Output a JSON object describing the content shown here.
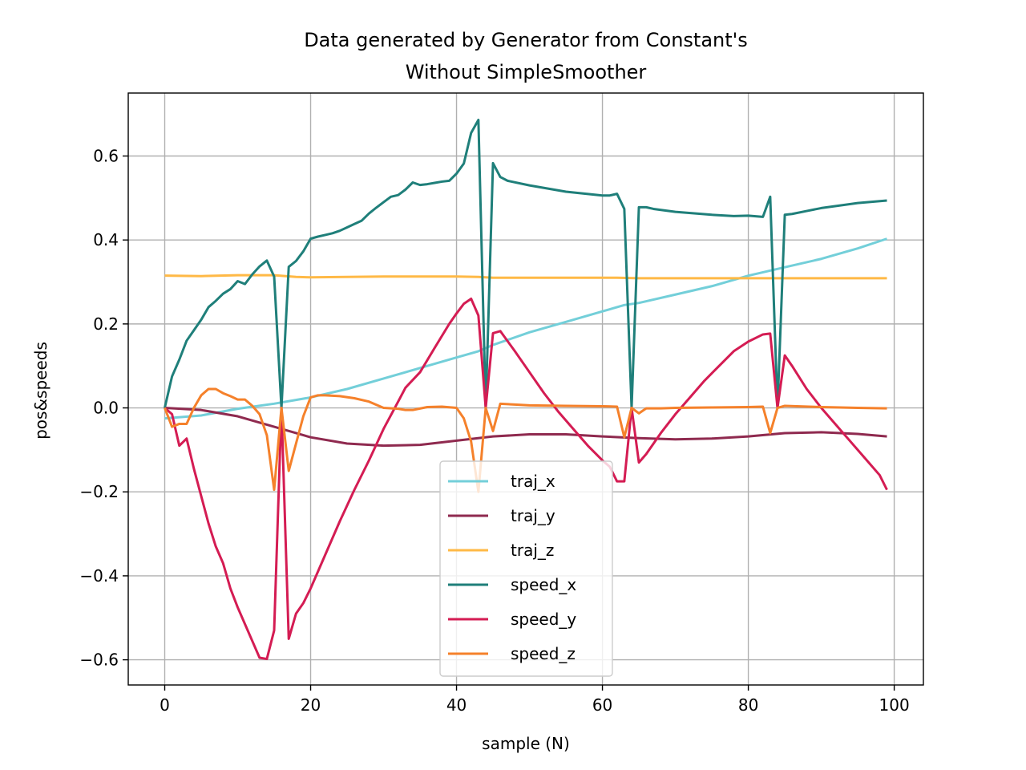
{
  "chart_data": {
    "type": "line",
    "title": [
      "Data generated by Generator from Constant's",
      "Without SimpleSmoother"
    ],
    "xlabel": "sample (N)",
    "ylabel": "pos&speeds",
    "xlim": [
      -5,
      104
    ],
    "ylim": [
      -0.66,
      0.75
    ],
    "xticks": [
      0,
      20,
      40,
      60,
      80,
      100
    ],
    "xtick_labels": [
      "0",
      "20",
      "40",
      "60",
      "80",
      "100"
    ],
    "yticks": [
      -0.6,
      -0.4,
      -0.2,
      0.0,
      0.2,
      0.4,
      0.6
    ],
    "ytick_labels": [
      "−0.6",
      "−0.4",
      "−0.2",
      "0.0",
      "0.2",
      "0.4",
      "0.6"
    ],
    "grid": true,
    "legend_position": "lower-center",
    "series": [
      {
        "name": "traj_x",
        "color": "#73cfd9",
        "points": [
          [
            0,
            -0.025
          ],
          [
            5,
            -0.018
          ],
          [
            10,
            -0.002
          ],
          [
            15,
            0.01
          ],
          [
            20,
            0.025
          ],
          [
            25,
            0.045
          ],
          [
            30,
            0.07
          ],
          [
            35,
            0.095
          ],
          [
            40,
            0.12
          ],
          [
            43,
            0.135
          ],
          [
            45,
            0.15
          ],
          [
            50,
            0.18
          ],
          [
            55,
            0.205
          ],
          [
            60,
            0.23
          ],
          [
            63,
            0.245
          ],
          [
            65,
            0.25
          ],
          [
            70,
            0.27
          ],
          [
            75,
            0.29
          ],
          [
            80,
            0.315
          ],
          [
            85,
            0.335
          ],
          [
            90,
            0.355
          ],
          [
            95,
            0.38
          ],
          [
            99,
            0.403
          ]
        ]
      },
      {
        "name": "traj_y",
        "color": "#8f2a4f",
        "points": [
          [
            0,
            0.0
          ],
          [
            5,
            -0.005
          ],
          [
            10,
            -0.02
          ],
          [
            15,
            -0.045
          ],
          [
            20,
            -0.07
          ],
          [
            25,
            -0.085
          ],
          [
            30,
            -0.09
          ],
          [
            35,
            -0.088
          ],
          [
            40,
            -0.078
          ],
          [
            45,
            -0.068
          ],
          [
            50,
            -0.063
          ],
          [
            55,
            -0.063
          ],
          [
            60,
            -0.068
          ],
          [
            65,
            -0.072
          ],
          [
            70,
            -0.075
          ],
          [
            75,
            -0.073
          ],
          [
            80,
            -0.068
          ],
          [
            85,
            -0.06
          ],
          [
            90,
            -0.058
          ],
          [
            95,
            -0.062
          ],
          [
            99,
            -0.068
          ]
        ]
      },
      {
        "name": "traj_z",
        "color": "#ffb946",
        "points": [
          [
            0,
            0.315
          ],
          [
            5,
            0.314
          ],
          [
            10,
            0.316
          ],
          [
            15,
            0.316
          ],
          [
            18,
            0.312
          ],
          [
            20,
            0.311
          ],
          [
            30,
            0.313
          ],
          [
            40,
            0.313
          ],
          [
            43,
            0.312
          ],
          [
            45,
            0.31
          ],
          [
            55,
            0.31
          ],
          [
            62,
            0.31
          ],
          [
            65,
            0.309
          ],
          [
            75,
            0.309
          ],
          [
            85,
            0.309
          ],
          [
            99,
            0.309
          ]
        ]
      },
      {
        "name": "speed_x",
        "color": "#1f7f7a",
        "points": [
          [
            0,
            0.0
          ],
          [
            1,
            0.075
          ],
          [
            2,
            0.115
          ],
          [
            3,
            0.16
          ],
          [
            4,
            0.185
          ],
          [
            5,
            0.21
          ],
          [
            6,
            0.24
          ],
          [
            7,
            0.255
          ],
          [
            8,
            0.272
          ],
          [
            9,
            0.283
          ],
          [
            10,
            0.302
          ],
          [
            11,
            0.295
          ],
          [
            12,
            0.318
          ],
          [
            13,
            0.337
          ],
          [
            14,
            0.351
          ],
          [
            15,
            0.313
          ],
          [
            16,
            0.0
          ],
          [
            17,
            0.336
          ],
          [
            18,
            0.35
          ],
          [
            19,
            0.373
          ],
          [
            20,
            0.403
          ],
          [
            21,
            0.408
          ],
          [
            22,
            0.412
          ],
          [
            23,
            0.416
          ],
          [
            24,
            0.422
          ],
          [
            25,
            0.43
          ],
          [
            26,
            0.438
          ],
          [
            27,
            0.446
          ],
          [
            28,
            0.463
          ],
          [
            29,
            0.477
          ],
          [
            30,
            0.49
          ],
          [
            31,
            0.503
          ],
          [
            32,
            0.507
          ],
          [
            33,
            0.52
          ],
          [
            34,
            0.537
          ],
          [
            35,
            0.531
          ],
          [
            36,
            0.533
          ],
          [
            37,
            0.536
          ],
          [
            38,
            0.539
          ],
          [
            39,
            0.541
          ],
          [
            40,
            0.558
          ],
          [
            41,
            0.582
          ],
          [
            42,
            0.655
          ],
          [
            43,
            0.686
          ],
          [
            44,
            0.0
          ],
          [
            45,
            0.583
          ],
          [
            46,
            0.55
          ],
          [
            47,
            0.541
          ],
          [
            50,
            0.53
          ],
          [
            55,
            0.515
          ],
          [
            60,
            0.506
          ],
          [
            61,
            0.506
          ],
          [
            62,
            0.51
          ],
          [
            63,
            0.474
          ],
          [
            64,
            0.0
          ],
          [
            65,
            0.478
          ],
          [
            66,
            0.478
          ],
          [
            67,
            0.474
          ],
          [
            70,
            0.467
          ],
          [
            75,
            0.46
          ],
          [
            78,
            0.457
          ],
          [
            80,
            0.458
          ],
          [
            82,
            0.455
          ],
          [
            83,
            0.503
          ],
          [
            84,
            0.0
          ],
          [
            85,
            0.46
          ],
          [
            86,
            0.462
          ],
          [
            88,
            0.469
          ],
          [
            90,
            0.476
          ],
          [
            95,
            0.488
          ],
          [
            99,
            0.494
          ]
        ]
      },
      {
        "name": "speed_y",
        "color": "#d41c53",
        "points": [
          [
            0,
            0.0
          ],
          [
            1,
            -0.015
          ],
          [
            2,
            -0.09
          ],
          [
            3,
            -0.073
          ],
          [
            4,
            -0.145
          ],
          [
            5,
            -0.21
          ],
          [
            6,
            -0.275
          ],
          [
            7,
            -0.33
          ],
          [
            8,
            -0.37
          ],
          [
            9,
            -0.43
          ],
          [
            10,
            -0.475
          ],
          [
            11,
            -0.515
          ],
          [
            12,
            -0.555
          ],
          [
            13,
            -0.595
          ],
          [
            14,
            -0.598
          ],
          [
            15,
            -0.53
          ],
          [
            16,
            0.0
          ],
          [
            17,
            -0.55
          ],
          [
            18,
            -0.49
          ],
          [
            19,
            -0.465
          ],
          [
            20,
            -0.43
          ],
          [
            22,
            -0.35
          ],
          [
            24,
            -0.27
          ],
          [
            26,
            -0.195
          ],
          [
            28,
            -0.125
          ],
          [
            30,
            -0.05
          ],
          [
            32,
            0.015
          ],
          [
            33,
            0.048
          ],
          [
            35,
            0.085
          ],
          [
            37,
            0.143
          ],
          [
            39,
            0.2
          ],
          [
            40,
            0.225
          ],
          [
            41,
            0.248
          ],
          [
            42,
            0.26
          ],
          [
            43,
            0.22
          ],
          [
            44,
            0.0
          ],
          [
            45,
            0.178
          ],
          [
            46,
            0.183
          ],
          [
            48,
            0.135
          ],
          [
            50,
            0.085
          ],
          [
            52,
            0.035
          ],
          [
            54,
            -0.01
          ],
          [
            56,
            -0.05
          ],
          [
            58,
            -0.09
          ],
          [
            60,
            -0.125
          ],
          [
            61,
            -0.14
          ],
          [
            62,
            -0.175
          ],
          [
            63,
            -0.175
          ],
          [
            64,
            0.0
          ],
          [
            65,
            -0.13
          ],
          [
            66,
            -0.11
          ],
          [
            68,
            -0.06
          ],
          [
            70,
            -0.015
          ],
          [
            72,
            0.025
          ],
          [
            74,
            0.065
          ],
          [
            76,
            0.1
          ],
          [
            78,
            0.135
          ],
          [
            80,
            0.158
          ],
          [
            82,
            0.175
          ],
          [
            83,
            0.177
          ],
          [
            84,
            0.0
          ],
          [
            85,
            0.125
          ],
          [
            86,
            0.1
          ],
          [
            88,
            0.045
          ],
          [
            90,
            0.0
          ],
          [
            92,
            -0.04
          ],
          [
            94,
            -0.08
          ],
          [
            96,
            -0.12
          ],
          [
            98,
            -0.16
          ],
          [
            99,
            -0.195
          ]
        ]
      },
      {
        "name": "speed_z",
        "color": "#f5812b",
        "points": [
          [
            0,
            0.0
          ],
          [
            1,
            -0.045
          ],
          [
            2,
            -0.038
          ],
          [
            3,
            -0.038
          ],
          [
            4,
            0.0
          ],
          [
            5,
            0.03
          ],
          [
            6,
            0.045
          ],
          [
            7,
            0.045
          ],
          [
            8,
            0.035
          ],
          [
            9,
            0.028
          ],
          [
            10,
            0.02
          ],
          [
            11,
            0.02
          ],
          [
            12,
            0.005
          ],
          [
            13,
            -0.015
          ],
          [
            14,
            -0.065
          ],
          [
            15,
            -0.195
          ],
          [
            16,
            0.0
          ],
          [
            17,
            -0.15
          ],
          [
            18,
            -0.085
          ],
          [
            19,
            -0.02
          ],
          [
            20,
            0.025
          ],
          [
            21,
            0.03
          ],
          [
            22,
            0.03
          ],
          [
            24,
            0.028
          ],
          [
            26,
            0.023
          ],
          [
            28,
            0.015
          ],
          [
            30,
            0.0
          ],
          [
            32,
            -0.002
          ],
          [
            33,
            -0.005
          ],
          [
            34,
            -0.005
          ],
          [
            36,
            0.002
          ],
          [
            38,
            0.003
          ],
          [
            40,
            0.0
          ],
          [
            41,
            -0.025
          ],
          [
            42,
            -0.08
          ],
          [
            43,
            -0.2
          ],
          [
            44,
            0.0
          ],
          [
            45,
            -0.055
          ],
          [
            46,
            0.01
          ],
          [
            48,
            0.008
          ],
          [
            50,
            0.006
          ],
          [
            55,
            0.005
          ],
          [
            60,
            0.004
          ],
          [
            62,
            0.003
          ],
          [
            63,
            -0.07
          ],
          [
            64,
            0.0
          ],
          [
            65,
            -0.013
          ],
          [
            66,
            -0.001
          ],
          [
            68,
            -0.001
          ],
          [
            70,
            0.0
          ],
          [
            75,
            0.001
          ],
          [
            80,
            0.002
          ],
          [
            82,
            0.003
          ],
          [
            83,
            -0.06
          ],
          [
            84,
            0.0
          ],
          [
            85,
            0.005
          ],
          [
            90,
            0.002
          ],
          [
            95,
            0.0
          ],
          [
            99,
            -0.001
          ]
        ]
      }
    ]
  }
}
